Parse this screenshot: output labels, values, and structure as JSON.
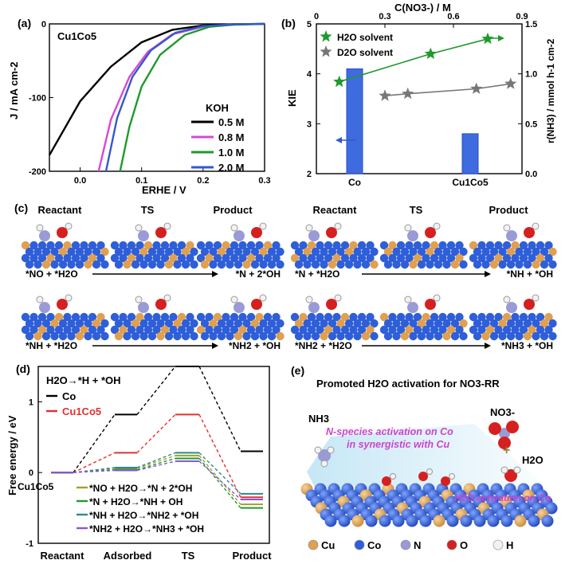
{
  "colors": {
    "black": "#000000",
    "magenta": "#d64ad6",
    "green": "#1f9a2c",
    "blue": "#3558c8",
    "red": "#e03030",
    "olive": "#a0a02a",
    "teal": "#2e8a8a",
    "violet": "#8a56d8",
    "gray": "#777777",
    "cu": "#e0a050",
    "co": "#2f5fd8",
    "n": "#9a9ad6",
    "o": "#d62020",
    "h": "#f2f2f2"
  },
  "panel_a": {
    "label": "(a)",
    "sample": "Cu1Co5",
    "legend_title": "KOH"
  },
  "panel_b": {
    "label": "(b)",
    "arrow_left_icon": "arrow-left",
    "arrow_right_icon": "arrow-right"
  },
  "panel_c": {
    "label": "(c)",
    "headers": [
      "Reactant",
      "TS",
      "Product",
      "Reactant",
      "TS",
      "Product"
    ],
    "steps": [
      {
        "reactant": "*NO + *H2O",
        "product": "*N + 2*OH"
      },
      {
        "reactant": "*N + *H2O",
        "product": "*NH + *OH"
      },
      {
        "reactant": "*NH + *H2O",
        "product": "*NH2 + *OH"
      },
      {
        "reactant": "*NH2 + *H2O",
        "product": "*NH3 + *OH"
      }
    ]
  },
  "panel_d": {
    "label": "(d)",
    "reaction": "H2O→*H + *OH",
    "group_label": "Cu1Co5"
  },
  "panel_e": {
    "label": "(e)",
    "title": "Promoted H2O activation for NO3-RR",
    "nh3": "NH3",
    "no3": "NO3-",
    "h2o": "H2O",
    "n_species_line1": "N-species activation on Co",
    "n_species_line2": "in synergistic with Cu",
    "h2o_activation": "H2O activation on Co",
    "plus": "+",
    "legend": [
      {
        "label": "Cu",
        "color": "#e0a050"
      },
      {
        "label": "Co",
        "color": "#2f5fd8"
      },
      {
        "label": "N",
        "color": "#9a9ad6"
      },
      {
        "label": "O",
        "color": "#d62020"
      },
      {
        "label": "H",
        "color": "#f2f2f2"
      }
    ]
  },
  "chart_data": [
    {
      "id": "a",
      "type": "line",
      "xlabel": "ERHE / V",
      "ylabel": "J / mA cm-2",
      "xlim": [
        -0.05,
        0.3
      ],
      "ylim": [
        -200,
        0
      ],
      "xticks": [
        "0.0",
        "0.1",
        "0.2",
        "0.3"
      ],
      "yticks": [
        "0",
        "-100",
        "-200"
      ],
      "series": [
        {
          "name": "0.5 M",
          "color": "#000000",
          "x": [
            -0.05,
            0.0,
            0.05,
            0.1,
            0.15,
            0.2,
            0.25,
            0.3
          ],
          "y": [
            -178,
            -105,
            -58,
            -25,
            -8,
            -2,
            -0.5,
            0
          ]
        },
        {
          "name": "0.8 M",
          "color": "#d64ad6",
          "x": [
            0.03,
            0.05,
            0.08,
            0.11,
            0.15,
            0.2,
            0.25,
            0.3
          ],
          "y": [
            -200,
            -130,
            -72,
            -38,
            -14,
            -4,
            -1,
            0
          ]
        },
        {
          "name": "1.0 M",
          "color": "#1f9a2c",
          "x": [
            0.065,
            0.08,
            0.1,
            0.13,
            0.17,
            0.21,
            0.25,
            0.3
          ],
          "y": [
            -200,
            -140,
            -85,
            -42,
            -15,
            -4,
            -1,
            0
          ]
        },
        {
          "name": "2.0 M",
          "color": "#3558c8",
          "x": [
            0.042,
            0.06,
            0.085,
            0.115,
            0.155,
            0.2,
            0.25,
            0.3
          ],
          "y": [
            -200,
            -128,
            -72,
            -36,
            -12,
            -3,
            -0.5,
            0
          ]
        }
      ]
    },
    {
      "id": "b",
      "type": "bar+scatter",
      "categories": [
        "Co",
        "Cu1Co5"
      ],
      "values": [
        4.1,
        2.8
      ],
      "ylabel": "KIE",
      "ylim": [
        2,
        5
      ],
      "yticks": [
        "2",
        "3",
        "4",
        "5"
      ],
      "top_xlabel": "C(NO3-) / M",
      "top_xlim": [
        0,
        0.9
      ],
      "top_xticks": [
        "0",
        "0.3",
        "0.6",
        "0.9"
      ],
      "right_ylabel": "r(NH3) / mmol h-1 cm-2",
      "right_ylim": [
        0,
        1.5
      ],
      "right_yticks": [
        "0.0",
        "0.5",
        "1.0",
        "1.5"
      ],
      "series": [
        {
          "name": "H2O solvent",
          "color": "#1f9a2c",
          "x": [
            0.1,
            0.5,
            0.75
          ],
          "y": [
            0.92,
            1.2,
            1.35
          ]
        },
        {
          "name": "D2O solvent",
          "color": "#777777",
          "x": [
            0.3,
            0.4,
            0.7,
            0.85
          ],
          "y": [
            0.78,
            0.8,
            0.85,
            0.9
          ]
        }
      ]
    },
    {
      "id": "d",
      "type": "line",
      "ylabel": "Free energy / eV",
      "ylim": [
        -1,
        1.5
      ],
      "yticks": [
        "-1",
        "0",
        "1"
      ],
      "categories": [
        "Reactant",
        "Adsorbed",
        "TS",
        "Product"
      ],
      "series": [
        {
          "name": "Co",
          "color": "#000000",
          "values": [
            0,
            0.82,
            1.5,
            0.3
          ]
        },
        {
          "name": "Cu1Co5",
          "color": "#e03030",
          "values": [
            0,
            0.28,
            0.82,
            -0.35
          ]
        },
        {
          "name": "*NO + H2O→*N + 2*OH",
          "color": "#a0a02a",
          "values": [
            0,
            0.06,
            0.24,
            -0.45
          ]
        },
        {
          "name": "*N + H2O→*NH + OH",
          "color": "#1f9a2c",
          "values": [
            0,
            0.04,
            0.2,
            -0.5
          ]
        },
        {
          "name": "*NH + H2O→*NH2 + *OH",
          "color": "#2e8a8a",
          "values": [
            0,
            0.07,
            0.28,
            -0.3
          ]
        },
        {
          "name": "*NH2 + H2O→*NH3 + *OH",
          "color": "#8a56d8",
          "values": [
            0,
            0.03,
            0.16,
            -0.38
          ]
        }
      ]
    }
  ]
}
